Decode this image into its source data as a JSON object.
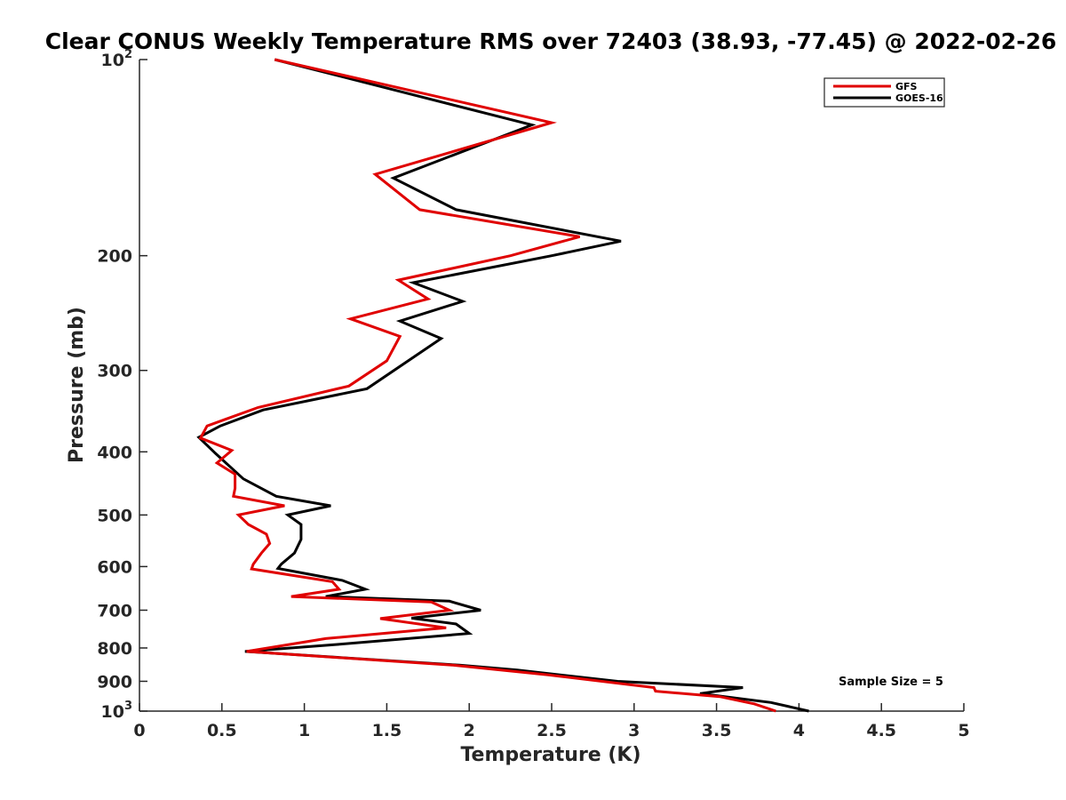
{
  "chart_data": {
    "type": "line",
    "title": "Clear CONUS Weekly Temperature RMS over 72403 (38.93, -77.45) @ 2022-02-26",
    "xlabel": "Temperature (K)",
    "ylabel": "Pressure (mb)",
    "xlim": [
      0,
      5
    ],
    "ylim": [
      100,
      1000
    ],
    "y_scale": "log",
    "y_reversed": true,
    "grid": false,
    "legend_position": "top-right",
    "x_ticks": [
      0,
      0.5,
      1,
      1.5,
      2,
      2.5,
      3,
      3.5,
      4,
      4.5,
      5
    ],
    "x_tick_labels": [
      "0",
      "0.5",
      "1",
      "1.5",
      "2",
      "2.5",
      "3",
      "3.5",
      "4",
      "4.5",
      "5"
    ],
    "y_ticks": [
      100,
      200,
      300,
      400,
      500,
      600,
      700,
      800,
      900,
      1000
    ],
    "y_tick_labels": [
      {
        "base": "10",
        "sup": "2"
      },
      {
        "base": "200",
        "sup": ""
      },
      {
        "base": "300",
        "sup": ""
      },
      {
        "base": "400",
        "sup": ""
      },
      {
        "base": "500",
        "sup": ""
      },
      {
        "base": "600",
        "sup": ""
      },
      {
        "base": "700",
        "sup": ""
      },
      {
        "base": "800",
        "sup": ""
      },
      {
        "base": "900",
        "sup": ""
      },
      {
        "base": "10",
        "sup": "3"
      }
    ],
    "annotation": "Sample Size = 5",
    "series": [
      {
        "name": "GFS",
        "color": "#e00000",
        "points": [
          [
            0.82,
            100
          ],
          [
            2.5,
            125
          ],
          [
            1.43,
            150
          ],
          [
            1.7,
            170
          ],
          [
            2.67,
            187
          ],
          [
            2.25,
            200
          ],
          [
            1.57,
            218
          ],
          [
            1.75,
            233
          ],
          [
            1.28,
            250
          ],
          [
            1.58,
            266
          ],
          [
            1.5,
            290
          ],
          [
            1.27,
            317
          ],
          [
            0.72,
            342
          ],
          [
            0.41,
            365
          ],
          [
            0.37,
            381
          ],
          [
            0.56,
            398
          ],
          [
            0.47,
            416
          ],
          [
            0.58,
            433
          ],
          [
            0.58,
            455
          ],
          [
            0.57,
            468
          ],
          [
            0.88,
            484
          ],
          [
            0.6,
            500
          ],
          [
            0.66,
            517
          ],
          [
            0.77,
            535
          ],
          [
            0.79,
            553
          ],
          [
            0.74,
            572
          ],
          [
            0.69,
            595
          ],
          [
            0.68,
            605
          ],
          [
            1.17,
            633
          ],
          [
            1.21,
            650
          ],
          [
            0.92,
            667
          ],
          [
            1.77,
            680
          ],
          [
            1.88,
            700
          ],
          [
            1.46,
            721
          ],
          [
            1.86,
            745
          ],
          [
            1.13,
            774
          ],
          [
            0.65,
            810
          ],
          [
            1.9,
            850
          ],
          [
            2.48,
            880
          ],
          [
            3.12,
            920
          ],
          [
            3.13,
            932
          ],
          [
            3.52,
            950
          ],
          [
            3.73,
            975
          ],
          [
            3.86,
            1000
          ]
        ]
      },
      {
        "name": "GOES-16",
        "color": "#000000",
        "points": [
          [
            0.82,
            100
          ],
          [
            2.38,
            126
          ],
          [
            1.54,
            152
          ],
          [
            1.92,
            170
          ],
          [
            2.92,
            190
          ],
          [
            2.5,
            200
          ],
          [
            1.66,
            220
          ],
          [
            1.96,
            235
          ],
          [
            1.58,
            252
          ],
          [
            1.83,
            268
          ],
          [
            1.38,
            320
          ],
          [
            0.75,
            345
          ],
          [
            0.49,
            365
          ],
          [
            0.36,
            380
          ],
          [
            0.46,
            402
          ],
          [
            0.63,
            440
          ],
          [
            0.83,
            468
          ],
          [
            1.16,
            484
          ],
          [
            0.9,
            500
          ],
          [
            0.98,
            517
          ],
          [
            0.98,
            545
          ],
          [
            0.94,
            572
          ],
          [
            0.86,
            595
          ],
          [
            0.84,
            604
          ],
          [
            1.23,
            630
          ],
          [
            1.37,
            650
          ],
          [
            1.13,
            667
          ],
          [
            1.88,
            678
          ],
          [
            2.07,
            700
          ],
          [
            1.65,
            720
          ],
          [
            1.92,
            735
          ],
          [
            2.0,
            760
          ],
          [
            1.2,
            790
          ],
          [
            0.64,
            810
          ],
          [
            1.94,
            850
          ],
          [
            2.29,
            865
          ],
          [
            2.9,
            900
          ],
          [
            3.66,
            920
          ],
          [
            3.4,
            940
          ],
          [
            3.83,
            970
          ],
          [
            4.06,
            1000
          ]
        ]
      }
    ]
  }
}
